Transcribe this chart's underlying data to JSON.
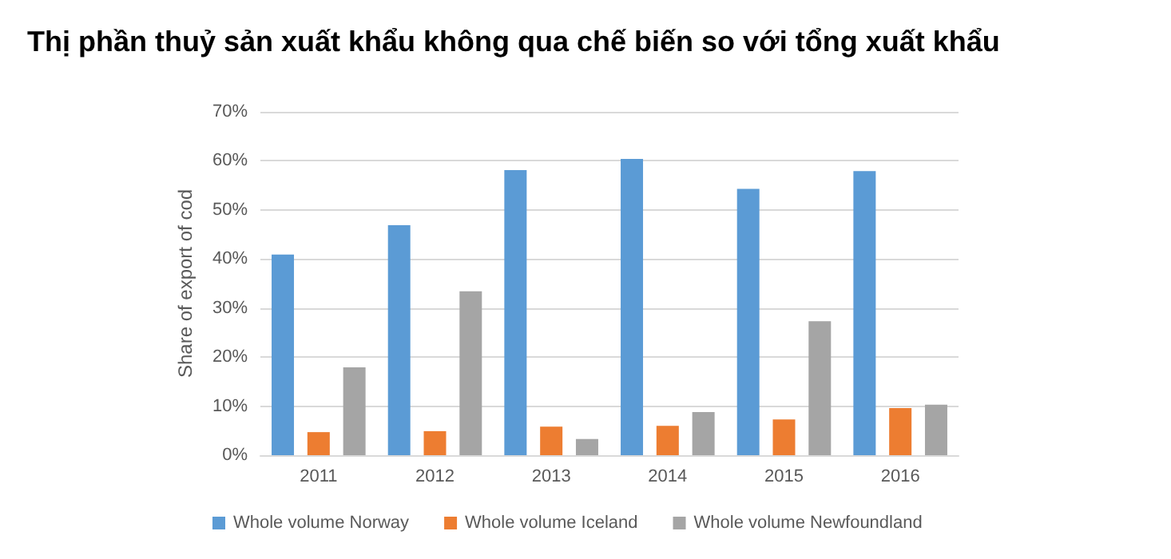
{
  "chart_data": {
    "type": "bar",
    "title": "Thị phần thuỷ sản xuất khẩu không qua chế biến so với tổng xuất khẩu",
    "ylabel": "Share of export of cod",
    "categories": [
      "2011",
      "2012",
      "2013",
      "2014",
      "2015",
      "2016"
    ],
    "series": [
      {
        "name": "Whole volume Norway",
        "color": "#5b9bd5",
        "values": [
          40.9,
          46.9,
          58.1,
          60.4,
          54.3,
          57.9
        ]
      },
      {
        "name": "Whole volume Iceland",
        "color": "#ed7d31",
        "values": [
          4.7,
          4.9,
          5.8,
          6.0,
          7.3,
          9.6
        ]
      },
      {
        "name": "Whole volume Newfoundland",
        "color": "#a5a5a5",
        "values": [
          17.9,
          33.4,
          3.3,
          8.8,
          27.3,
          10.3
        ]
      }
    ],
    "ylim": [
      0,
      70
    ],
    "yticks": [
      {
        "value": 0,
        "label": "0%"
      },
      {
        "value": 10,
        "label": "10%"
      },
      {
        "value": 20,
        "label": "20%"
      },
      {
        "value": 30,
        "label": "30%"
      },
      {
        "value": 40,
        "label": "40%"
      },
      {
        "value": 50,
        "label": "50%"
      },
      {
        "value": 60,
        "label": "60%"
      },
      {
        "value": 70,
        "label": "70%"
      }
    ],
    "grid": "y",
    "legend": "bottom"
  }
}
